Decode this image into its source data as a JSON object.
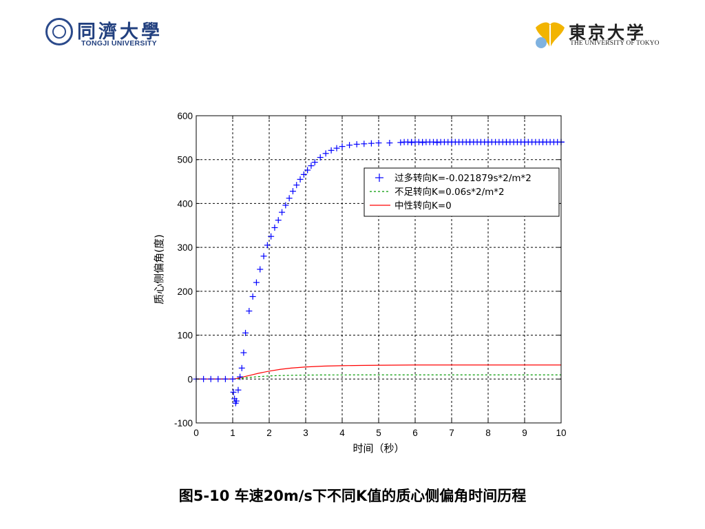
{
  "header": {
    "left_logo": {
      "name_cn": "同濟大學",
      "name_en": "TONGJI UNIVERSITY"
    },
    "right_logo": {
      "name_cn": "東京大学",
      "name_en": "THE UNIVERSITY OF TOKYO",
      "icon": "gingko-leaf-icon"
    }
  },
  "chart_data": {
    "type": "line",
    "title": "",
    "xlabel": "时间（秒）",
    "ylabel": "质心侧偏角(度)",
    "xlim": [
      0,
      10
    ],
    "ylim": [
      -100,
      600
    ],
    "xticks": [
      "0",
      "1",
      "2",
      "3",
      "4",
      "5",
      "6",
      "7",
      "8",
      "9",
      "10"
    ],
    "yticks": [
      "-100",
      "0",
      "100",
      "200",
      "300",
      "400",
      "500",
      "600"
    ],
    "grid": true,
    "legend_position": "upper-right",
    "series": [
      {
        "name": "过多转向K=-0.021879s*2/m*2",
        "color": "#0000ff",
        "style": "plus-markers",
        "x": [
          0,
          0.2,
          0.4,
          0.6,
          0.8,
          1.0,
          1.02,
          1.05,
          1.08,
          1.1,
          1.15,
          1.2,
          1.25,
          1.3,
          1.35,
          1.45,
          1.55,
          1.65,
          1.75,
          1.85,
          1.95,
          2.05,
          2.15,
          2.25,
          2.35,
          2.45,
          2.55,
          2.65,
          2.75,
          2.85,
          2.95,
          3.05,
          3.15,
          3.25,
          3.4,
          3.55,
          3.7,
          3.85,
          4.0,
          4.2,
          4.4,
          4.6,
          4.8,
          5.0,
          5.3,
          5.6,
          5.9,
          6.2,
          6.6,
          7.0,
          7.5,
          8.0,
          8.5,
          9.0,
          9.5,
          10.0
        ],
        "y": [
          0,
          0,
          0,
          0,
          0,
          0,
          -30,
          -45,
          -55,
          -50,
          -25,
          5,
          25,
          60,
          105,
          155,
          188,
          220,
          250,
          280,
          305,
          325,
          345,
          362,
          380,
          396,
          412,
          428,
          442,
          455,
          466,
          476,
          486,
          494,
          505,
          514,
          521,
          526,
          530,
          533,
          535,
          536,
          537,
          538,
          538,
          539,
          539,
          539,
          539,
          540,
          540,
          540,
          540,
          540,
          540,
          540
        ]
      },
      {
        "name": "不足转向K=0.06s*2/m*2",
        "color": "#009900",
        "style": "dashed",
        "x": [
          0,
          1.0,
          1.1,
          1.2,
          1.35,
          1.5,
          1.7,
          2.0,
          2.3,
          2.6,
          3.0,
          3.5,
          4.0,
          5.0,
          6.0,
          7.0,
          8.0,
          9.0,
          10.0
        ],
        "y": [
          0,
          0,
          0,
          1,
          3,
          4,
          5.5,
          7,
          8,
          8.5,
          9,
          9.3,
          9.4,
          9.5,
          9.5,
          9.5,
          9.5,
          9.5,
          9.5
        ]
      },
      {
        "name": "中性转向K=0",
        "color": "#ff0000",
        "style": "solid",
        "x": [
          0,
          1.0,
          1.1,
          1.2,
          1.35,
          1.5,
          1.7,
          2.0,
          2.3,
          2.6,
          3.0,
          3.5,
          4.0,
          4.5,
          5.0,
          6.0,
          7.0,
          8.0,
          9.0,
          10.0
        ],
        "y": [
          0,
          0,
          1,
          3,
          6,
          9,
          13,
          18,
          22,
          25,
          27.5,
          29.5,
          30.5,
          31,
          31.5,
          32,
          32,
          32,
          32,
          32
        ]
      }
    ]
  },
  "caption": {
    "text": "图5-10 车速20m/s下不同K值的质心侧偏角时间历程"
  }
}
